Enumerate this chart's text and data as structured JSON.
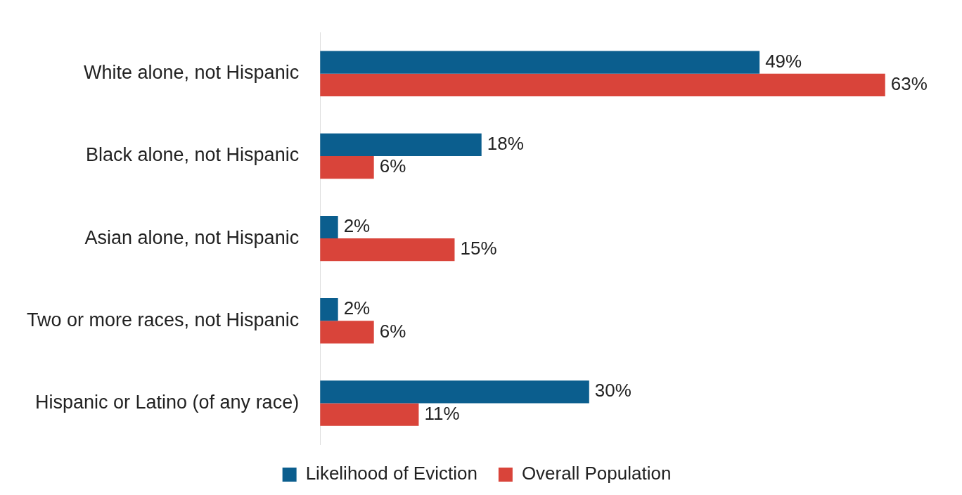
{
  "chart_data": {
    "type": "bar",
    "orientation": "horizontal",
    "categories": [
      "White alone, not Hispanic",
      "Black alone, not Hispanic",
      "Asian alone, not Hispanic",
      "Two or more races, not Hispanic",
      "Hispanic or Latino (of any race)"
    ],
    "series": [
      {
        "name": "Likelihood of Eviction",
        "color": "#0b5e8e",
        "values": [
          49,
          18,
          2,
          2,
          30
        ],
        "value_labels": [
          "49%",
          "18%",
          "2%",
          "2%",
          "30%"
        ]
      },
      {
        "name": "Overall Population",
        "color": "#d9443a",
        "values": [
          63,
          6,
          15,
          6,
          11
        ],
        "value_labels": [
          "63%",
          "6%",
          "15%",
          "6%",
          "11%"
        ]
      }
    ],
    "legend": "bottom",
    "grid": false
  }
}
